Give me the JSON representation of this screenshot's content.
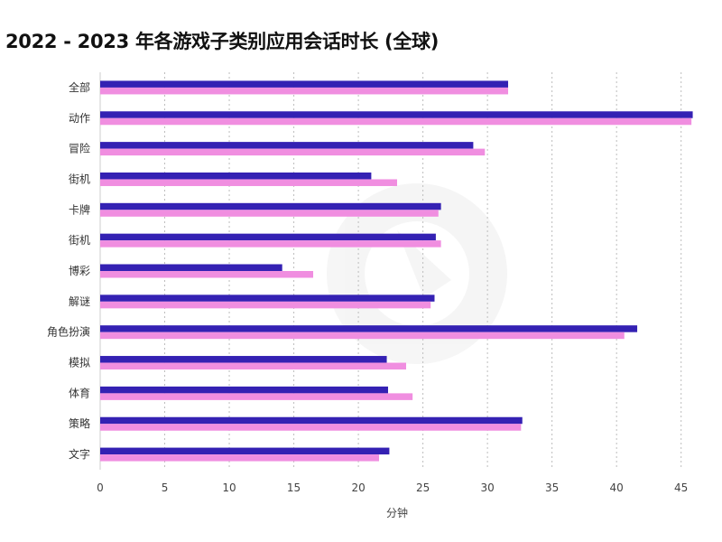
{
  "chart_data": {
    "type": "bar",
    "orientation": "horizontal",
    "title": "2022 - 2023 年各游戏子类别应用会话时长 (全球)",
    "xlabel": "分钟",
    "ylabel": "",
    "xlim": [
      0,
      46
    ],
    "xticks": [
      0,
      5,
      10,
      15,
      20,
      25,
      30,
      35,
      40,
      45
    ],
    "grid": true,
    "legend": "none",
    "categories": [
      "全部",
      "动作",
      "冒险",
      "街机",
      "卡牌",
      "街机",
      "博彩",
      "解谜",
      "角色扮演",
      "模拟",
      "体育",
      "策略",
      "文字"
    ],
    "series": [
      {
        "color": "#3421b3",
        "values": [
          31.6,
          45.9,
          28.9,
          21.0,
          26.4,
          26.0,
          14.1,
          25.9,
          41.6,
          22.2,
          22.3,
          32.7,
          22.4
        ]
      },
      {
        "color": "#f08ee0",
        "values": [
          31.6,
          45.8,
          29.8,
          23.0,
          26.2,
          26.4,
          16.5,
          25.6,
          40.6,
          23.7,
          24.2,
          32.6,
          21.6
        ]
      }
    ]
  }
}
